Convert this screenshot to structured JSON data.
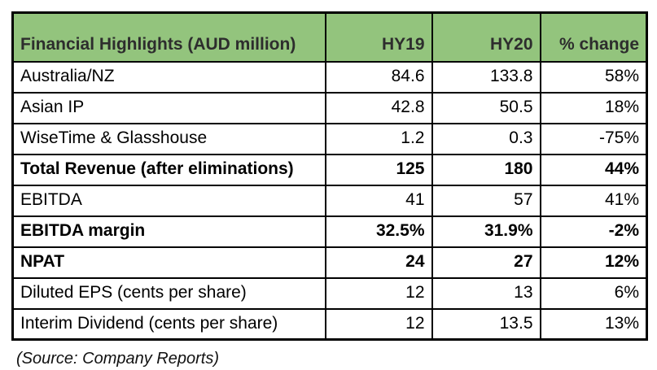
{
  "colors": {
    "header_bg": "#93c47d",
    "header_text": "#2d2d2d",
    "border": "#000000",
    "body_text": "#000000"
  },
  "table": {
    "header": {
      "title": "Financial Highlights (AUD million)",
      "col_hy19": "HY19",
      "col_hy20": "HY20",
      "col_change": "% change"
    },
    "rows": [
      {
        "label": "Australia/NZ",
        "hy19": "84.6",
        "hy20": "133.8",
        "change": "58%",
        "bold": false
      },
      {
        "label": "Asian IP",
        "hy19": "42.8",
        "hy20": "50.5",
        "change": "18%",
        "bold": false
      },
      {
        "label": "WiseTime & Glasshouse",
        "hy19": "1.2",
        "hy20": "0.3",
        "change": "-75%",
        "bold": false
      },
      {
        "label": "Total Revenue (after eliminations)",
        "hy19": "125",
        "hy20": "180",
        "change": "44%",
        "bold": true
      },
      {
        "label": "EBITDA",
        "hy19": "41",
        "hy20": "57",
        "change": "41%",
        "bold": false
      },
      {
        "label": "EBITDA margin",
        "hy19": "32.5%",
        "hy20": "31.9%",
        "change": "-2%",
        "bold": true
      },
      {
        "label": "NPAT",
        "hy19": "24",
        "hy20": "27",
        "change": "12%",
        "bold": true
      },
      {
        "label": "Diluted EPS (cents per share)",
        "hy19": "12",
        "hy20": "13",
        "change": "6%",
        "bold": false
      },
      {
        "label": "Interim Dividend (cents per share)",
        "hy19": "12",
        "hy20": "13.5",
        "change": "13%",
        "bold": false
      }
    ]
  },
  "source_note": "(Source: Company Reports)",
  "chart_data": {
    "type": "table",
    "title": "Financial Highlights (AUD million)",
    "columns": [
      "Financial Highlights (AUD million)",
      "HY19",
      "HY20",
      "% change"
    ],
    "rows": [
      [
        "Australia/NZ",
        84.6,
        133.8,
        "58%"
      ],
      [
        "Asian IP",
        42.8,
        50.5,
        "18%"
      ],
      [
        "WiseTime & Glasshouse",
        1.2,
        0.3,
        "-75%"
      ],
      [
        "Total Revenue (after eliminations)",
        125,
        180,
        "44%"
      ],
      [
        "EBITDA",
        41,
        57,
        "41%"
      ],
      [
        "EBITDA margin",
        "32.5%",
        "31.9%",
        "-2%"
      ],
      [
        "NPAT",
        24,
        27,
        "12%"
      ],
      [
        "Diluted EPS (cents per share)",
        12,
        13,
        "6%"
      ],
      [
        "Interim Dividend (cents per share)",
        12,
        13.5,
        "13%"
      ]
    ],
    "notes": "(Source: Company Reports)"
  }
}
